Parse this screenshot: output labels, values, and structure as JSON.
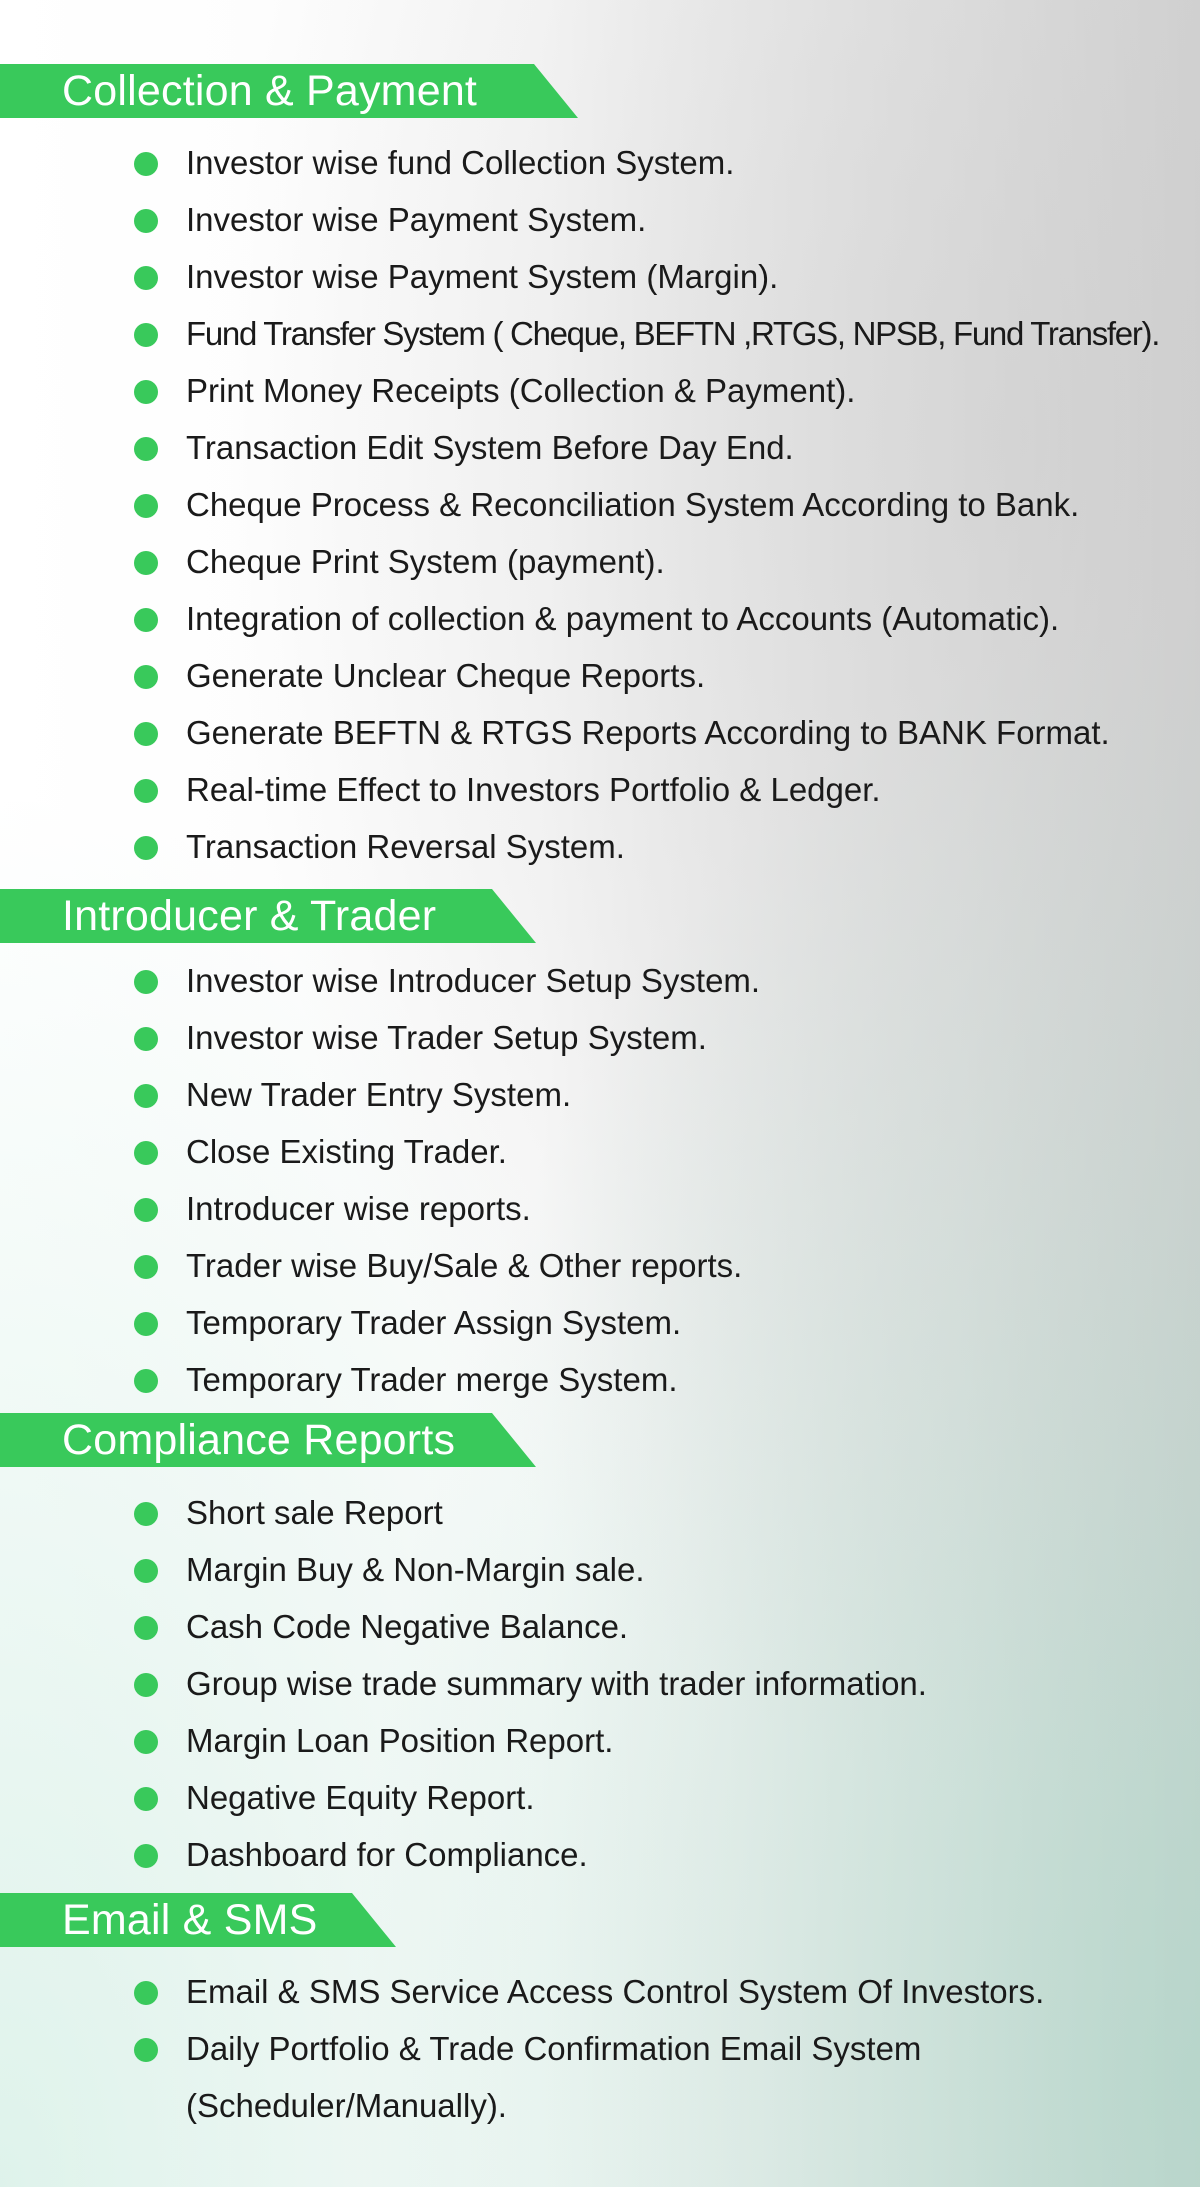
{
  "sections": [
    {
      "title": "Collection & Payment",
      "items": [
        "Investor wise fund Collection System.",
        "Investor wise Payment System.",
        "Investor wise Payment System (Margin).",
        "Fund Transfer System ( Cheque, BEFTN ,RTGS, NPSB, Fund Transfer).",
        "Print Money Receipts (Collection & Payment).",
        "Transaction Edit System Before Day End.",
        "Cheque Process & Reconciliation System According to Bank.",
        "Cheque Print System (payment).",
        "Integration of collection & payment to Accounts (Automatic).",
        "Generate Unclear Cheque Reports.",
        "Generate BEFTN & RTGS Reports According to BANK Format.",
        "Real-time Effect to Investors Portfolio & Ledger.",
        "Transaction Reversal System."
      ]
    },
    {
      "title": "Introducer & Trader",
      "items": [
        "Investor wise Introducer Setup System.",
        "Investor wise Trader Setup System.",
        "New Trader Entry System.",
        "Close Existing Trader.",
        "Introducer wise reports.",
        "Trader wise Buy/Sale & Other reports.",
        "Temporary Trader Assign System.",
        "Temporary Trader merge System."
      ]
    },
    {
      "title": "Compliance Reports",
      "items": [
        "Short sale Report",
        "Margin Buy & Non-Margin sale.",
        "Cash Code Negative Balance.",
        "Group wise trade summary with trader information.",
        "Margin Loan Position Report.",
        "Negative Equity Report.",
        "Dashboard for Compliance."
      ]
    },
    {
      "title": "Email & SMS",
      "items": [
        "Email & SMS Service Access Control System Of Investors.",
        "Daily Portfolio & Trade Confirmation Email System"
      ],
      "continuation": "(Scheduler/Manually)."
    }
  ],
  "colors": {
    "accent": "#39c95b",
    "text": "#1a1a1a",
    "header_text": "#ffffff"
  }
}
